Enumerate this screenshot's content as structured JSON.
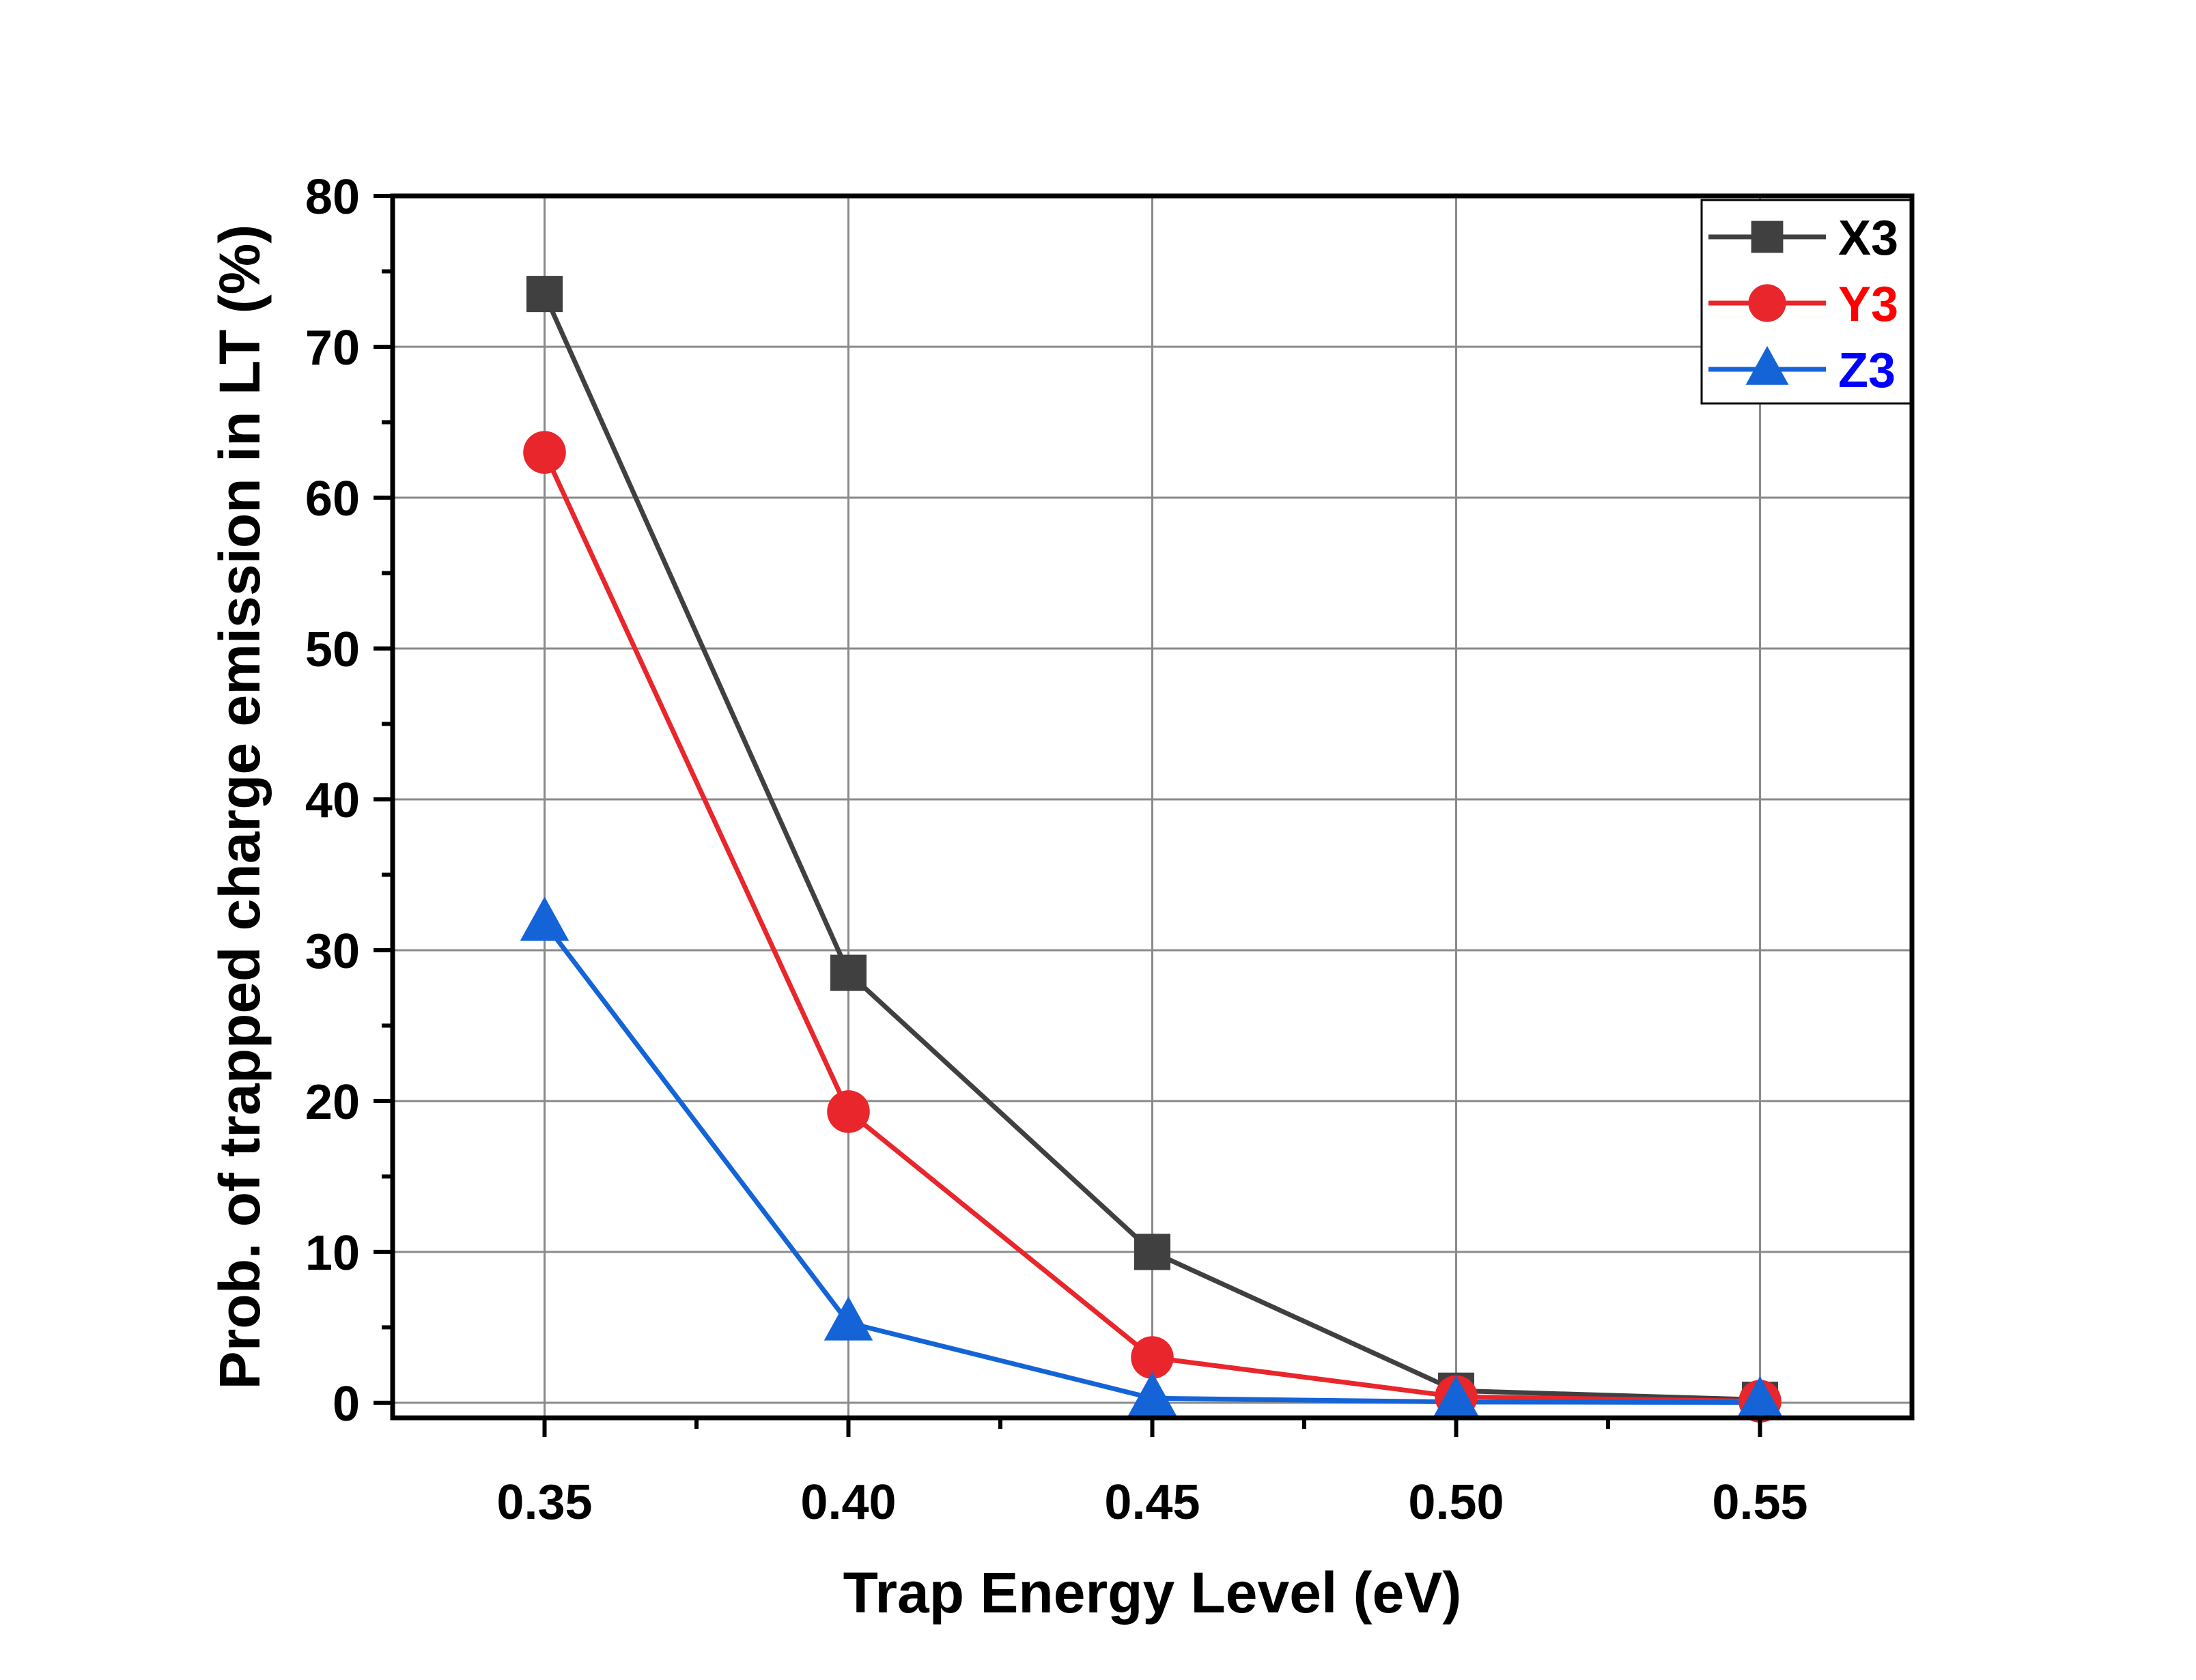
{
  "chart_data": {
    "type": "line",
    "xlabel": "Trap Energy Level (eV)",
    "ylabel": "Prob. of trapped charge emission in LT (%)",
    "x": [
      0.35,
      0.4,
      0.45,
      0.5,
      0.55
    ],
    "x_tick_labels": [
      "0.35",
      "0.40",
      "0.45",
      "0.50",
      "0.55"
    ],
    "y_ticks": [
      0,
      10,
      20,
      30,
      40,
      50,
      60,
      70,
      80
    ],
    "y_tick_labels": [
      "0",
      "10",
      "20",
      "30",
      "40",
      "50",
      "60",
      "70",
      "80"
    ],
    "xlim": [
      0.325,
      0.575
    ],
    "ylim": [
      -1,
      80
    ],
    "grid": true,
    "legend_position": "top-right",
    "series": [
      {
        "name": "X3",
        "color": "#404040",
        "marker": "square",
        "values": [
          73.5,
          28.5,
          10.0,
          0.8,
          0.2
        ]
      },
      {
        "name": "Y3",
        "color": "#e8262b",
        "marker": "circle",
        "values": [
          63.0,
          19.3,
          3.0,
          0.4,
          0.1
        ]
      },
      {
        "name": "Z3",
        "color": "#1464d8",
        "marker": "triangle",
        "values": [
          31.8,
          5.3,
          0.3,
          0.05,
          0.02
        ]
      }
    ]
  }
}
